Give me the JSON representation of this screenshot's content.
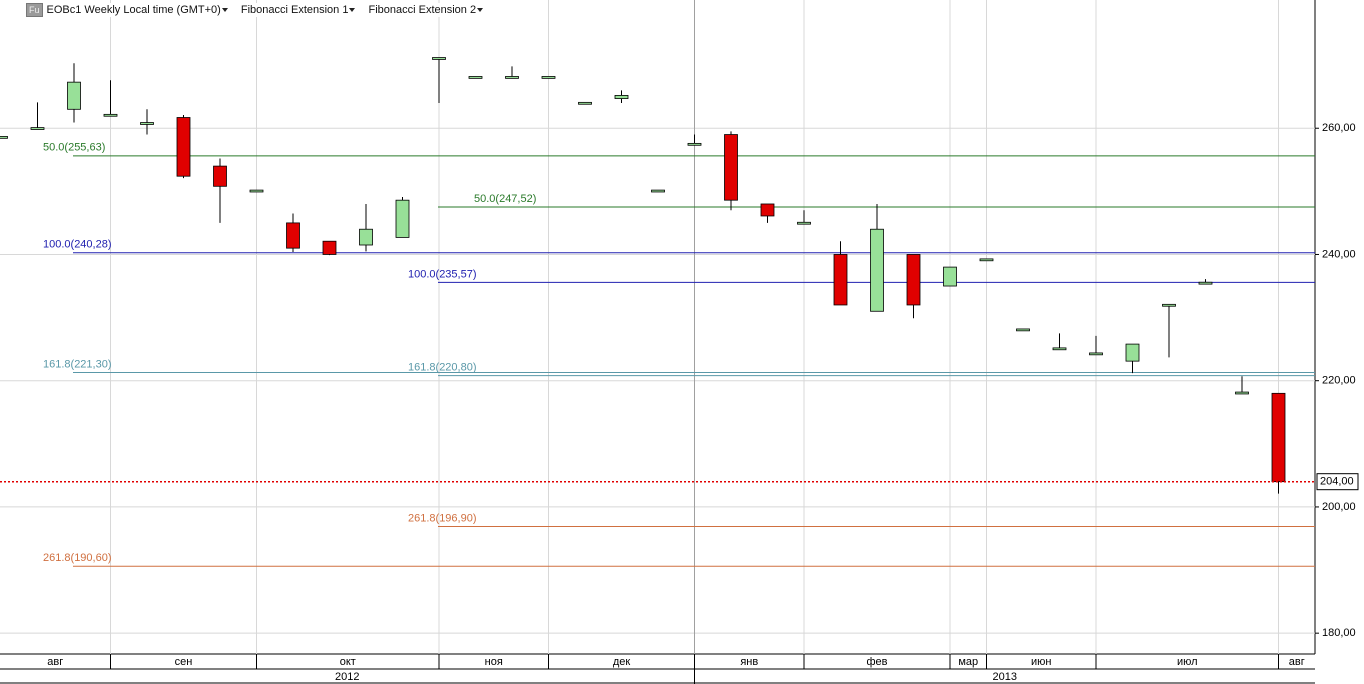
{
  "chart_data": {
    "type": "candlestick",
    "icon_label": "Fu",
    "title": "EOBc1 Weekly Local time (GMT+0)",
    "categories": [
      "авг",
      "авг",
      "авг",
      "сен",
      "сен",
      "сен",
      "сен",
      "окт",
      "окт",
      "окт",
      "окт",
      "окт",
      "ноя",
      "ноя",
      "ноя",
      "дек",
      "дек",
      "дек",
      "дек",
      "янв",
      "янв",
      "янв",
      "фев",
      "фев",
      "фев",
      "фев",
      "мар",
      "июн",
      "июн",
      "июн",
      "июл",
      "июл",
      "июл",
      "июл",
      "июл",
      "авг"
    ],
    "years": [
      "2012",
      "2012",
      "2012",
      "2012",
      "2012",
      "2012",
      "2012",
      "2012",
      "2012",
      "2012",
      "2012",
      "2012",
      "2012",
      "2012",
      "2012",
      "2012",
      "2012",
      "2012",
      "2012",
      "2013",
      "2013",
      "2013",
      "2013",
      "2013",
      "2013",
      "2013",
      "2013",
      "2013",
      "2013",
      "2013",
      "2013",
      "2013",
      "2013",
      "2013",
      "2013",
      "2013"
    ],
    "open": [
      258.4,
      259.8,
      263.0,
      261.9,
      260.6,
      261.7,
      254.0,
      249.9,
      245.0,
      242.1,
      241.5,
      242.7,
      270.9,
      267.9,
      267.9,
      267.9,
      263.8,
      264.7,
      249.9,
      257.3,
      259.0,
      248.0,
      244.8,
      240.0,
      231.0,
      240.0,
      235.0,
      239.0,
      227.9,
      224.9,
      224.1,
      223.1,
      231.8,
      235.3,
      217.9,
      218.0
    ],
    "high": [
      258.7,
      264.1,
      270.3,
      267.6,
      263.0,
      262.1,
      255.2,
      250.2,
      246.5,
      242.1,
      248.0,
      249.1,
      271.2,
      268.2,
      269.8,
      268.2,
      264.1,
      266.0,
      250.2,
      259.0,
      259.5,
      248.0,
      247.0,
      242.1,
      248.0,
      240.0,
      238.0,
      239.3,
      228.2,
      227.5,
      227.1,
      225.8,
      232.1,
      236.1,
      220.7,
      218.0
    ],
    "low": [
      258.4,
      259.8,
      260.9,
      261.9,
      259.0,
      252.1,
      245.0,
      249.9,
      240.4,
      239.9,
      240.5,
      242.7,
      264.0,
      267.9,
      267.9,
      267.9,
      263.8,
      264.0,
      249.9,
      257.3,
      247.0,
      245.0,
      244.8,
      232.0,
      231.0,
      229.9,
      235.0,
      239.0,
      227.9,
      224.9,
      224.1,
      221.2,
      223.7,
      235.3,
      217.9,
      202.1
    ],
    "close": [
      258.7,
      260.1,
      267.3,
      262.2,
      260.9,
      252.4,
      250.8,
      250.2,
      241.0,
      240.0,
      244.0,
      248.6,
      271.2,
      268.2,
      268.2,
      268.2,
      264.1,
      265.2,
      250.2,
      257.6,
      248.6,
      246.1,
      245.1,
      232.0,
      244.0,
      232.0,
      238.0,
      239.3,
      228.2,
      225.2,
      224.4,
      225.8,
      232.1,
      235.6,
      218.2,
      204.0
    ],
    "up_color": "#98e098",
    "down_color": "#e00000",
    "ylim": [
      176.7,
      280
    ],
    "yticks": [
      {
        "value": 180,
        "label": "180,00"
      },
      {
        "value": 200,
        "label": "200,00"
      },
      {
        "value": 220,
        "label": "220,00"
      },
      {
        "value": 240,
        "label": "240,00"
      },
      {
        "value": 260,
        "label": "260,00"
      }
    ],
    "grid": true,
    "last_price": {
      "value": 204,
      "label": "204,00",
      "color": "#e00000"
    },
    "fibonacci": [
      {
        "name": "Fibonacci Extension 1",
        "levels": [
          {
            "label": "50.0(255,63)",
            "value": 255.63,
            "color": "#2a7a2a"
          },
          {
            "label": "100.0(240,28)",
            "value": 240.28,
            "color": "#2020b0"
          },
          {
            "label": "161.8(221,30)",
            "value": 221.3,
            "color": "#5a98a8"
          },
          {
            "label": "261.8(190,60)",
            "value": 190.6,
            "color": "#d07040"
          }
        ]
      },
      {
        "name": "Fibonacci Extension 2",
        "levels": [
          {
            "label": "50.0(247,52)",
            "value": 247.52,
            "color": "#2a7a2a"
          },
          {
            "label": "100.0(235,57)",
            "value": 235.57,
            "color": "#2020b0"
          },
          {
            "label": "161.8(220,80)",
            "value": 220.8,
            "color": "#5a98a8"
          },
          {
            "label": "261.8(196,90)",
            "value": 196.9,
            "color": "#d07040"
          }
        ]
      }
    ]
  }
}
